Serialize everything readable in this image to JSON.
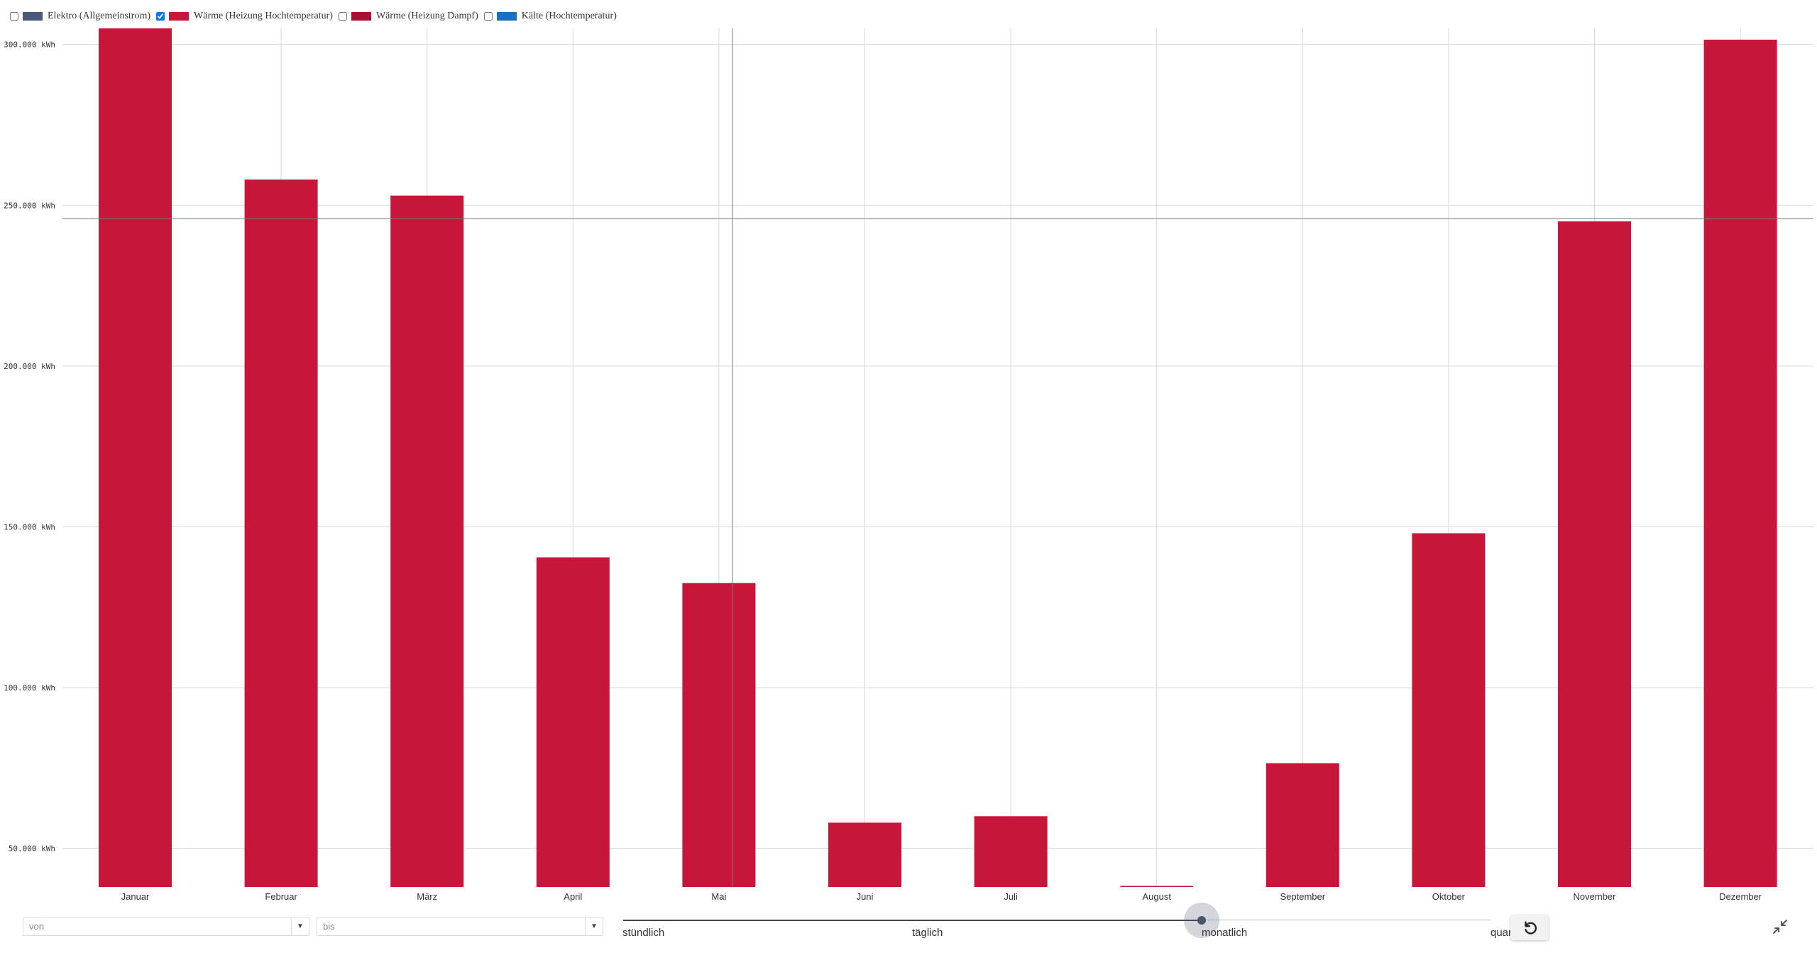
{
  "legend": {
    "items": [
      {
        "label": "Elektro (Allgemeinstrom)",
        "color": "#4a5a7a",
        "checked": false
      },
      {
        "label": "Wärme (Heizung Hochtemperatur)",
        "color": "#c8163a",
        "checked": true
      },
      {
        "label": "Wärme (Heizung Dampf)",
        "color": "#a80f30",
        "checked": false
      },
      {
        "label": "Kälte (Hochtemperatur)",
        "color": "#1a6fc0",
        "checked": false
      }
    ]
  },
  "chart_data": {
    "type": "bar",
    "categories": [
      "Januar",
      "Februar",
      "März",
      "April",
      "Mai",
      "Juni",
      "Juli",
      "August",
      "September",
      "Oktober",
      "November",
      "Dezember"
    ],
    "series": [
      {
        "name": "Wärme (Heizung Hochtemperatur)",
        "color": "#c8163a",
        "values": [
          305000,
          258000,
          253000,
          140500,
          132500,
          58000,
          60000,
          38000,
          76500,
          148000,
          245000,
          301500
        ]
      }
    ],
    "yticks": [
      50000,
      100000,
      150000,
      200000,
      250000,
      300000
    ],
    "ytick_labels": [
      "50.000 kWh",
      "100.000 kWh",
      "150.000 kWh",
      "200.000 kWh",
      "250.000 kWh",
      "300.000 kWh"
    ],
    "ylim": [
      38000,
      305000
    ],
    "grid": true
  },
  "controls": {
    "from_placeholder": "von",
    "to_placeholder": "bis",
    "dropdown_arrow": "▼",
    "resolution_labels": [
      "stündlich",
      "täglich",
      "monatlich",
      "quar"
    ],
    "selected_resolution": "monatlich",
    "reset_icon": "reset-icon",
    "collapse_icon": "collapse-icon"
  }
}
